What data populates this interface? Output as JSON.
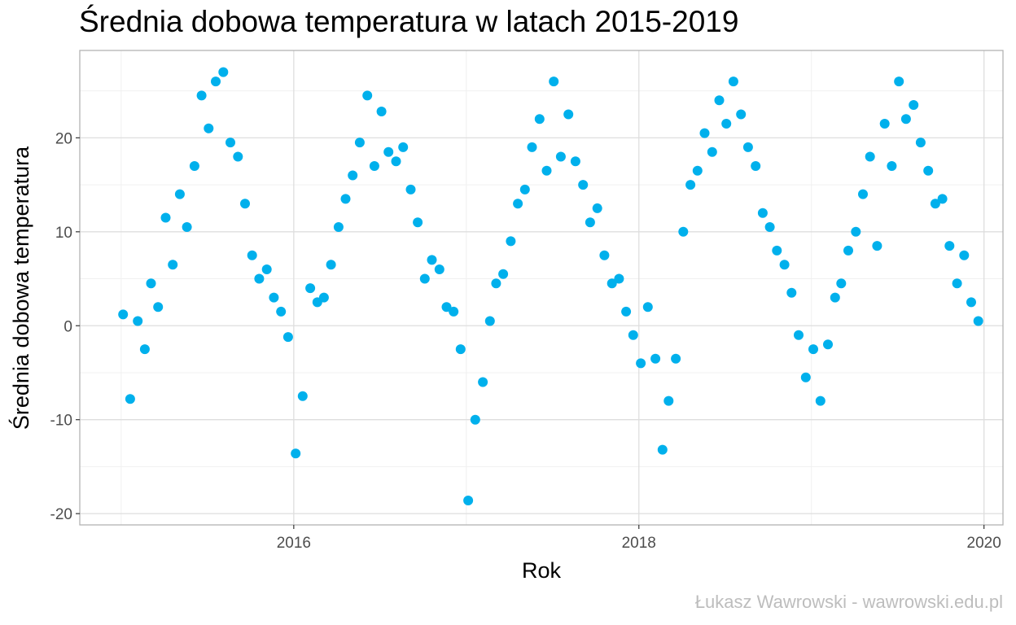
{
  "chart_data": {
    "type": "scatter",
    "title": "Średnia dobowa temperatura w latach 2015-2019",
    "xlabel": "Rok",
    "ylabel": "Średnia dobowa temperatura",
    "caption": "Łukasz Wawrowski - wawrowski.edu.pl",
    "x_ticks": [
      "2016",
      "2018",
      "2020"
    ],
    "y_ticks": [
      "-20",
      "-10",
      "0",
      "10",
      "20"
    ],
    "xlim": [
      2014.76,
      2020.11
    ],
    "ylim": [
      -21.2,
      29.3
    ],
    "grid": true,
    "point_color": "#00b0ec",
    "series": [
      {
        "x": [
          "2015-01-05",
          "2015-01-20",
          "2015-02-05",
          "2015-02-20",
          "2015-03-05",
          "2015-03-20",
          "2015-04-05",
          "2015-04-20",
          "2015-05-05",
          "2015-05-20",
          "2015-06-05",
          "2015-06-20",
          "2015-07-05",
          "2015-07-20",
          "2015-08-05",
          "2015-08-20",
          "2015-09-05",
          "2015-09-20",
          "2015-10-05",
          "2015-10-20",
          "2015-11-05",
          "2015-11-20",
          "2015-12-05",
          "2015-12-20",
          "2016-01-05",
          "2016-01-20",
          "2016-02-05",
          "2016-02-20",
          "2016-03-05",
          "2016-03-20",
          "2016-04-05",
          "2016-04-20",
          "2016-05-05",
          "2016-05-20",
          "2016-06-05",
          "2016-06-20",
          "2016-07-05",
          "2016-07-20",
          "2016-08-05",
          "2016-08-20",
          "2016-09-05",
          "2016-09-20",
          "2016-10-05",
          "2016-10-20",
          "2016-11-05",
          "2016-11-20",
          "2016-12-05",
          "2016-12-20",
          "2017-01-05",
          "2017-01-20",
          "2017-02-05",
          "2017-02-20",
          "2017-03-05",
          "2017-03-20",
          "2017-04-05",
          "2017-04-20",
          "2017-05-05",
          "2017-05-20",
          "2017-06-05",
          "2017-06-20",
          "2017-07-05",
          "2017-07-20",
          "2017-08-05",
          "2017-08-20",
          "2017-09-05",
          "2017-09-20",
          "2017-10-05",
          "2017-10-20",
          "2017-11-05",
          "2017-11-20",
          "2017-12-05",
          "2017-12-20",
          "2018-01-05",
          "2018-01-20",
          "2018-02-05",
          "2018-02-20",
          "2018-03-05",
          "2018-03-20",
          "2018-04-05",
          "2018-04-20",
          "2018-05-05",
          "2018-05-20",
          "2018-06-05",
          "2018-06-20",
          "2018-07-05",
          "2018-07-20",
          "2018-08-05",
          "2018-08-20",
          "2018-09-05",
          "2018-09-20",
          "2018-10-05",
          "2018-10-20",
          "2018-11-05",
          "2018-11-20",
          "2018-12-05",
          "2018-12-20",
          "2019-01-05",
          "2019-01-20",
          "2019-02-05",
          "2019-02-20",
          "2019-03-05",
          "2019-03-20",
          "2019-04-05",
          "2019-04-20",
          "2019-05-05",
          "2019-05-20",
          "2019-06-05",
          "2019-06-20",
          "2019-07-05",
          "2019-07-20",
          "2019-08-05",
          "2019-08-20",
          "2019-09-05",
          "2019-09-20",
          "2019-10-05",
          "2019-10-20",
          "2019-11-05",
          "2019-11-20",
          "2019-12-05",
          "2019-12-20"
        ],
        "y": [
          1.2,
          -7.8,
          0.5,
          -2.5,
          4.5,
          2.0,
          11.5,
          6.5,
          14.0,
          10.5,
          17.0,
          24.5,
          21.0,
          26.0,
          27.0,
          19.5,
          18.0,
          13.0,
          7.5,
          5.0,
          6.0,
          3.0,
          1.5,
          -1.2,
          -13.6,
          -7.5,
          4.0,
          2.5,
          3.0,
          6.5,
          10.5,
          13.5,
          16.0,
          19.5,
          24.5,
          17.0,
          22.8,
          18.5,
          17.5,
          19.0,
          14.5,
          11.0,
          5.0,
          7.0,
          6.0,
          2.0,
          1.5,
          -2.5,
          -18.6,
          -10.0,
          -6.0,
          0.5,
          4.5,
          5.5,
          9.0,
          13.0,
          14.5,
          19.0,
          22.0,
          16.5,
          26.0,
          18.0,
          22.5,
          17.5,
          15.0,
          11.0,
          12.5,
          7.5,
          4.5,
          5.0,
          1.5,
          -1.0,
          -4.0,
          2.0,
          -3.5,
          -13.2,
          -8.0,
          -3.5,
          10.0,
          15.0,
          16.5,
          20.5,
          18.5,
          24.0,
          21.5,
          26.0,
          22.5,
          19.0,
          17.0,
          12.0,
          10.5,
          8.0,
          6.5,
          3.5,
          -1.0,
          -5.5,
          -2.5,
          -8.0,
          -2.0,
          3.0,
          4.5,
          8.0,
          10.0,
          14.0,
          18.0,
          8.5,
          21.5,
          17.0,
          26.0,
          22.0,
          23.5,
          19.5,
          16.5,
          13.0,
          13.5,
          8.5,
          4.5,
          7.5,
          2.5,
          0.5
        ]
      }
    ]
  }
}
